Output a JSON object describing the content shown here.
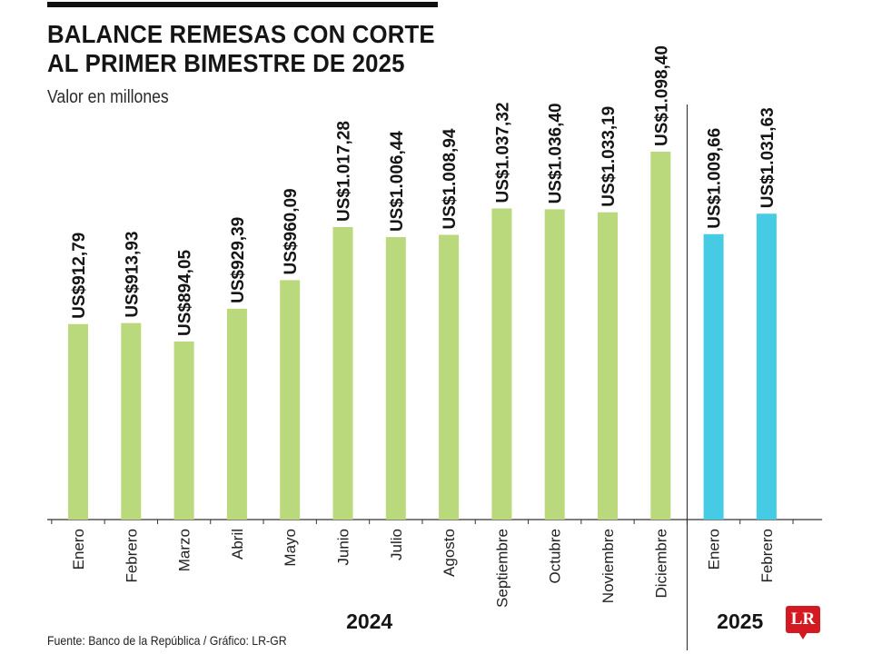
{
  "header": {
    "title_line1": "BALANCE REMESAS CON CORTE",
    "title_line2": "AL PRIMER BIMESTRE DE 2025",
    "subtitle": "Valor en millones"
  },
  "footer": {
    "source": "Fuente: Banco de la República / Gráfico: LR-GR",
    "logo_text": "LR"
  },
  "colors": {
    "bar_2024": "#b9d97c",
    "bar_2025": "#45cbe3",
    "text": "#151515",
    "logo": "#d31a22"
  },
  "chart_data": {
    "type": "bar",
    "title": "BALANCE REMESAS CON CORTE AL PRIMER BIMESTRE DE 2025",
    "subtitle": "Valor en millones",
    "categories": [
      "Enero",
      "Febrero",
      "Marzo",
      "Abril",
      "Mayo",
      "Junio",
      "Julio",
      "Agosto",
      "Septiembre",
      "Octubre",
      "Noviembre",
      "Diciembre",
      "Enero",
      "Febrero"
    ],
    "values": [
      912.79,
      913.93,
      894.05,
      929.39,
      960.09,
      1017.28,
      1006.44,
      1008.94,
      1037.32,
      1036.4,
      1033.19,
      1098.4,
      1009.66,
      1031.63
    ],
    "value_labels": [
      "US$912,79",
      "US$913,93",
      "US$894,05",
      "US$929,39",
      "US$960,09",
      "US$1.017,28",
      "US$1.006,44",
      "US$1.008,94",
      "US$1.037,32",
      "US$1.036,40",
      "US$1.033,19",
      "US$1.098,40",
      "US$1.009,66",
      "US$1.031,63"
    ],
    "groups": [
      {
        "label": "2024",
        "count": 12,
        "color": "#b9d97c"
      },
      {
        "label": "2025",
        "count": 2,
        "color": "#45cbe3"
      }
    ],
    "xlabel": "",
    "ylabel": "",
    "legend": "none",
    "grid": false
  }
}
